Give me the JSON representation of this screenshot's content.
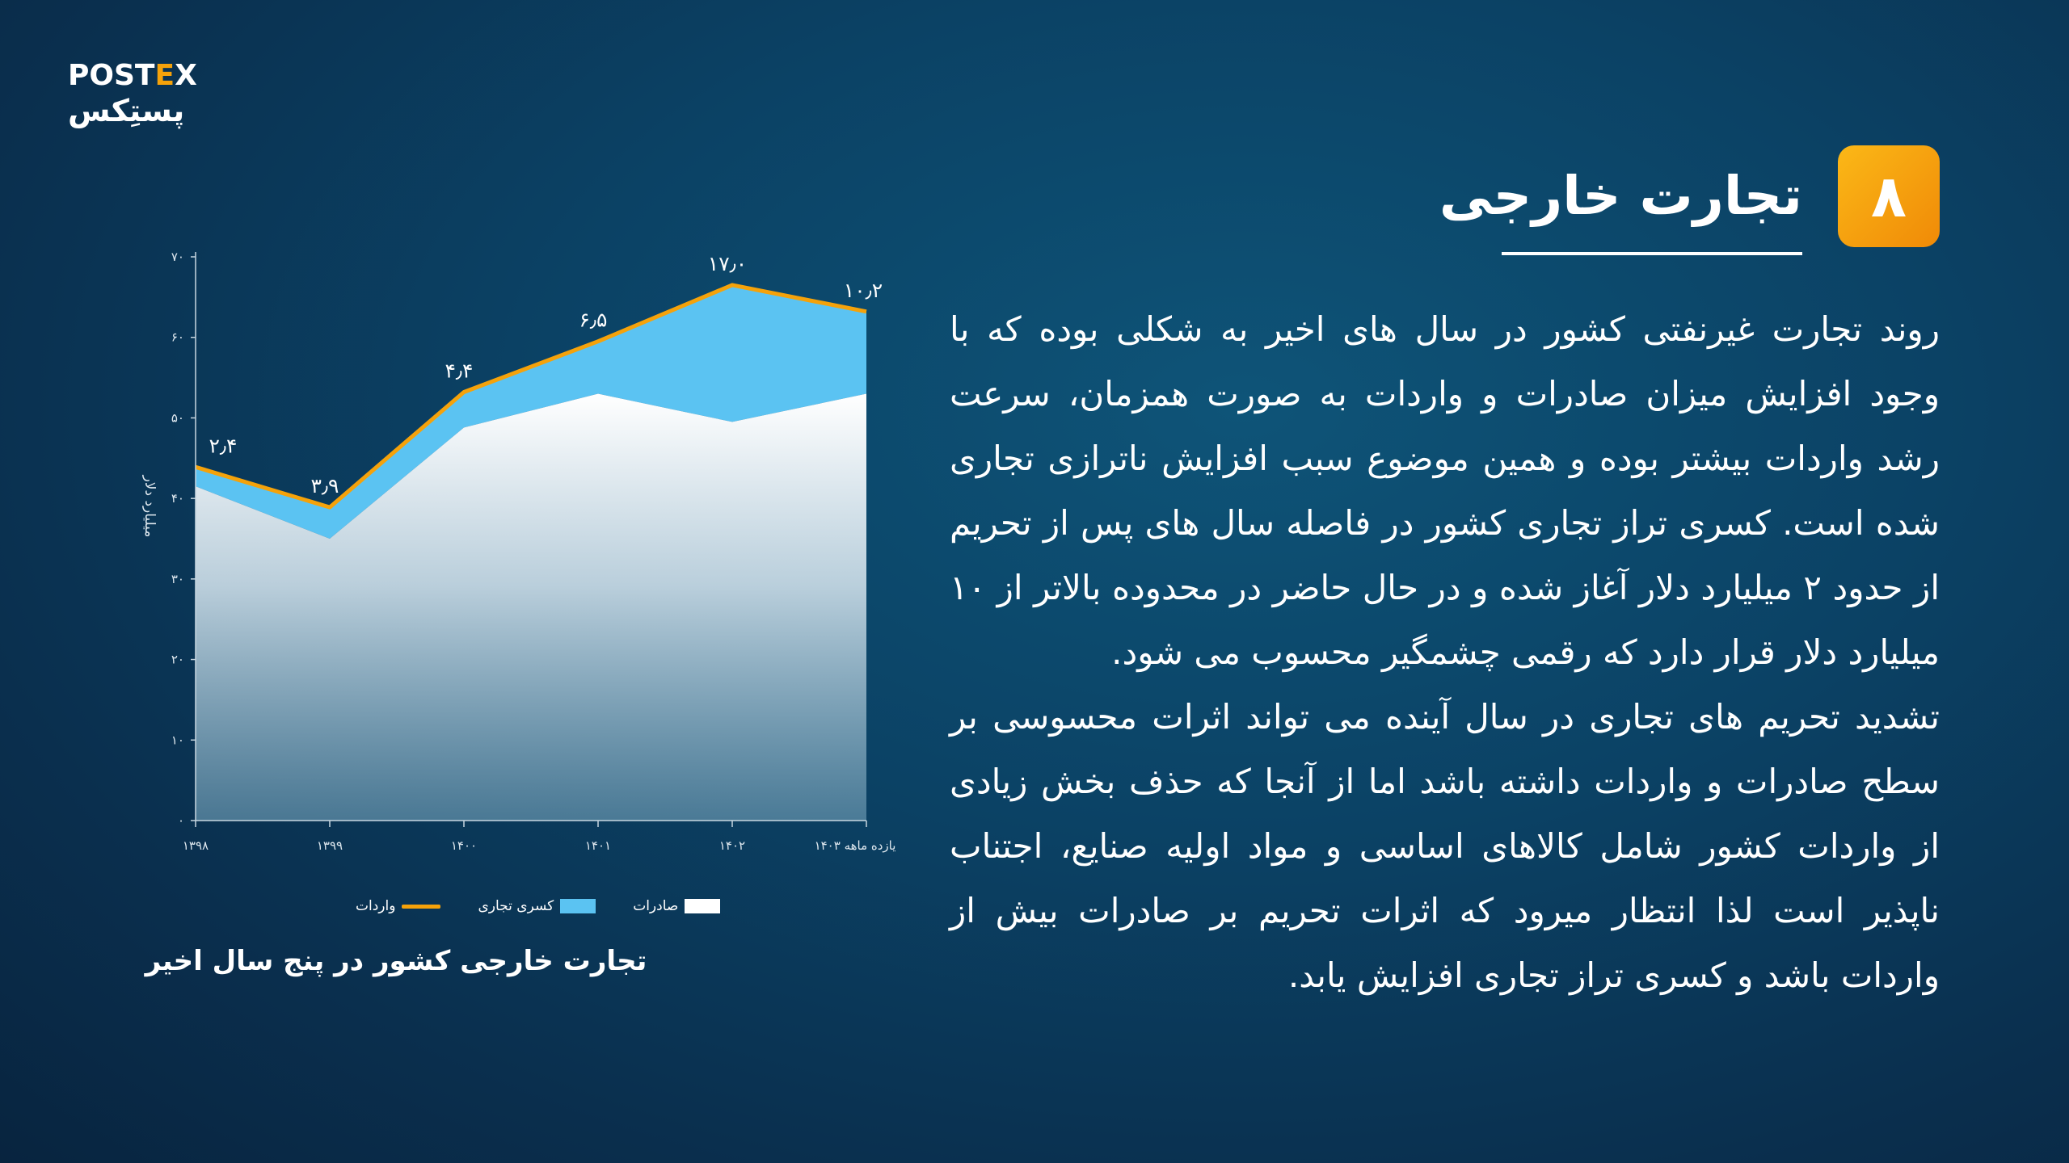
{
  "brand": {
    "logo_en_a": "POST",
    "logo_en_b": "E",
    "logo_en_c": "X",
    "logo_fa": "پستِکس"
  },
  "heading": {
    "number": "۸",
    "title": "تجارت خارجی"
  },
  "body": {
    "paragraph1": "روند تجارت غیرنفتی کشور در سال های اخیر به شکلی بوده که با وجود افزایش میزان صادرات و واردات به صورت همزمان، سرعت رشد واردات بیشتر بوده و همین موضوع سبب افزایش ناترازی تجاری شده است. کسری تراز تجاری کشور در فاصله سال های پس از تحریم از حدود ۲ میلیارد دلار آغاز شده و در حال حاضر در محدوده بالاتر از ۱۰ میلیارد دلار قرار دارد که رقمی چشمگیر محسوب می شود.",
    "paragraph2": "تشدید تحریم های تجاری در سال آینده می تواند اثرات محسوسی بر سطح صادرات و واردات داشته باشد اما از آنجا که حذف بخش زیادی از واردات کشور شامل کالاهای اساسی و مواد اولیه صنایع، اجتناب ناپذیر است لذا انتظار میرود که اثرات تحریم بر صادرات بیش از واردات باشد و کسری تراز تجاری افزایش یابد."
  },
  "chart_data": {
    "type": "area",
    "title": "تجارت خارجی کشور در پنج سال اخیر",
    "ylabel": "میلیارد دلار",
    "ylim": [
      0,
      70
    ],
    "yticks": [
      0,
      10,
      20,
      30,
      40,
      50,
      60,
      70
    ],
    "ytick_labels": [
      "۰",
      "۱۰",
      "۲۰",
      "۳۰",
      "۴۰",
      "۵۰",
      "۶۰",
      "۷۰"
    ],
    "categories": [
      "۱۳۹۸",
      "۱۳۹۹",
      "۱۴۰۰",
      "۱۴۰۱",
      "۱۴۰۲",
      "یازده ماهه ۱۴۰۳"
    ],
    "series": [
      {
        "name": "صادرات",
        "values": [
          41.5,
          35.0,
          48.8,
          53.0,
          49.5,
          53.0
        ],
        "color": "#ffffff"
      },
      {
        "name": "کسری تجاری",
        "values": [
          2.4,
          3.9,
          4.4,
          6.5,
          17.0,
          10.2
        ],
        "color": "#5bc3f2"
      },
      {
        "name": "واردات",
        "values": [
          43.9,
          38.9,
          53.2,
          59.5,
          66.5,
          63.2
        ],
        "color": "#f5a20a"
      }
    ],
    "data_labels": [
      "۲٫۴",
      "۳٫۹",
      "۴٫۴",
      "۶٫۵",
      "۱۷٫۰",
      "۱۰٫۲"
    ],
    "legend_position": "bottom"
  }
}
